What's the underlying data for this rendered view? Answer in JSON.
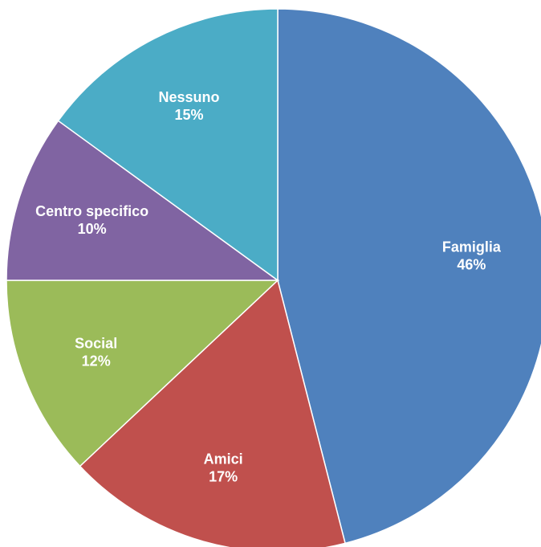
{
  "chart_data": {
    "type": "pie",
    "categories": [
      "Famiglia",
      "Amici",
      "Social",
      "Centro specifico",
      "Nessuno"
    ],
    "values": [
      46,
      17,
      12,
      10,
      15
    ],
    "value_labels": [
      "46%",
      "17%",
      "12%",
      "10%",
      "15%"
    ],
    "colors": [
      "#4F81BD",
      "#C0504D",
      "#9BBB59",
      "#8064A2",
      "#4BACC6"
    ],
    "start": "12 o'clock",
    "direction": "clockwise",
    "labels_position": "inside slices",
    "legend": "none"
  }
}
